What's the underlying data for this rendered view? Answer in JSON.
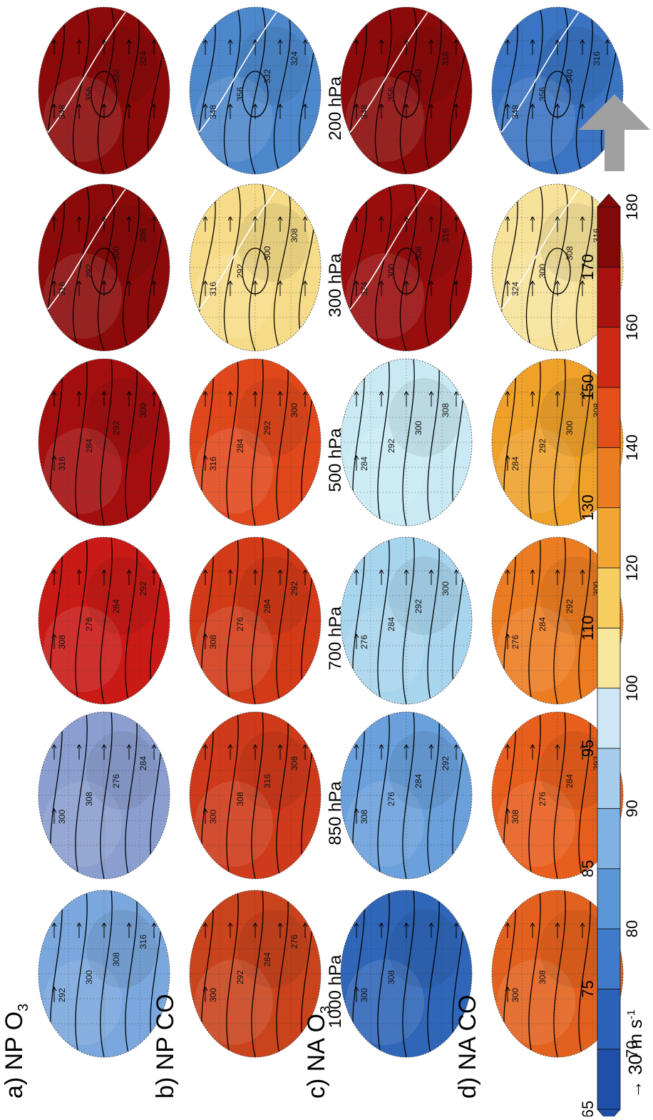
{
  "columns": [
    {
      "label": "a)  NP O",
      "sub": "3",
      "scheme": "o3",
      "tone": "ozone",
      "colors": [
        "#8c0a0a",
        "#8c0a0a",
        "#a40e0e",
        "#c91a16",
        "#8a9fd0",
        "#7aa7dd"
      ],
      "flux": [
        true,
        true,
        false,
        false,
        false,
        false
      ],
      "contours": [
        "348",
        "356",
        "332",
        "324",
        "316",
        "292",
        "300",
        "308",
        "316",
        "284",
        "292",
        "300",
        "308",
        "276",
        "284",
        "292",
        "300",
        "308",
        "276",
        "284",
        "292",
        "300",
        "308",
        "316"
      ]
    },
    {
      "label": "b)  NP CO",
      "sub": "",
      "scheme": "co",
      "tone": "co",
      "colors": [
        "#4d88cc",
        "#f6dc88",
        "#e0481c",
        "#d33a18",
        "#cf3a1a",
        "#c9431c"
      ],
      "flux": [
        true,
        true,
        false,
        false,
        false,
        false
      ],
      "contours": [
        "348",
        "356",
        "332",
        "324",
        "316",
        "292",
        "300",
        "308",
        "316",
        "284",
        "292",
        "300",
        "308",
        "276",
        "284",
        "292",
        "300",
        "308",
        "316",
        "308",
        "300",
        "292",
        "284",
        "276"
      ]
    },
    {
      "label": "c)  NA O",
      "sub": "3",
      "scheme": "o3",
      "tone": "ozone",
      "colors": [
        "#8c0a0a",
        "#9a0d0d",
        "#c9eaf4",
        "#a8d5ee",
        "#6aa0dc",
        "#2f66b8"
      ],
      "flux": [
        true,
        true,
        false,
        false,
        false,
        false
      ],
      "contours": [
        "348",
        "356",
        "340",
        "316",
        "324",
        "300",
        "308",
        "316",
        "284",
        "292",
        "300",
        "308",
        "276",
        "284",
        "292",
        "300",
        "308",
        "276",
        "284",
        "292",
        "300",
        "308"
      ]
    },
    {
      "label": "d)  NA CO",
      "sub": "",
      "scheme": "co",
      "tone": "co",
      "colors": [
        "#3a74c2",
        "#f7e29a",
        "#efa12a",
        "#ec7c22",
        "#e85e1c",
        "#e3611e"
      ],
      "flux": [
        true,
        true,
        false,
        false,
        false,
        false
      ],
      "contours": [
        "348",
        "356",
        "340",
        "316",
        "324",
        "300",
        "308",
        "316",
        "284",
        "292",
        "300",
        "308",
        "276",
        "284",
        "292",
        "300",
        "308",
        "276",
        "284",
        "292",
        "300",
        "308"
      ]
    }
  ],
  "levels": [
    "200 hPa",
    "300 hPa",
    "500 hPa",
    "700 hPa",
    "850 hPa",
    "1000 hPa"
  ],
  "colorbar": {
    "ticks": [
      "65",
      "70",
      "75",
      "80",
      "85",
      "90",
      "95",
      "100",
      "110",
      "120",
      "130",
      "140",
      "150",
      "160",
      "170",
      "180"
    ],
    "colors": [
      "#1f4fa8",
      "#2c63b8",
      "#3f7bc8",
      "#5b96d6",
      "#7fb2e3",
      "#a6cdee",
      "#cde7f5",
      "#f6e79c",
      "#f6cd5e",
      "#f2a633",
      "#ec7c22",
      "#e3501a",
      "#cc2a14",
      "#a8120f",
      "#830909"
    ]
  },
  "vector_scale_label": "→ 30 m s",
  "vector_scale_sup": "-1",
  "contour_color": "#000000",
  "wind_color": "#000000",
  "arrow_icon_color": "#a0a0a0"
}
